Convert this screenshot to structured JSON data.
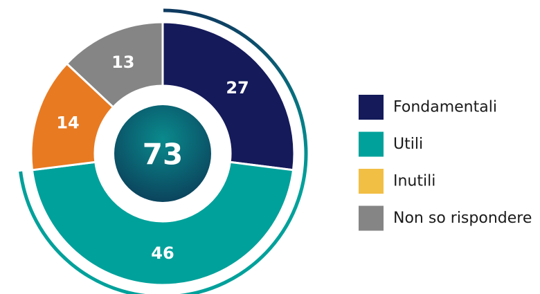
{
  "chart_data": {
    "type": "donut",
    "categories": [
      "Fondamentali",
      "Utili",
      "Inutili",
      "Non so rispondere"
    ],
    "values": [
      27,
      46,
      14,
      13
    ],
    "colors": [
      "#141a5a",
      "#00a19b",
      "#e87a22",
      "#858585"
    ],
    "legend_colors": [
      "#141a5a",
      "#00a19b",
      "#f2bf45",
      "#858585"
    ],
    "center_value": 73,
    "legend": "right"
  }
}
